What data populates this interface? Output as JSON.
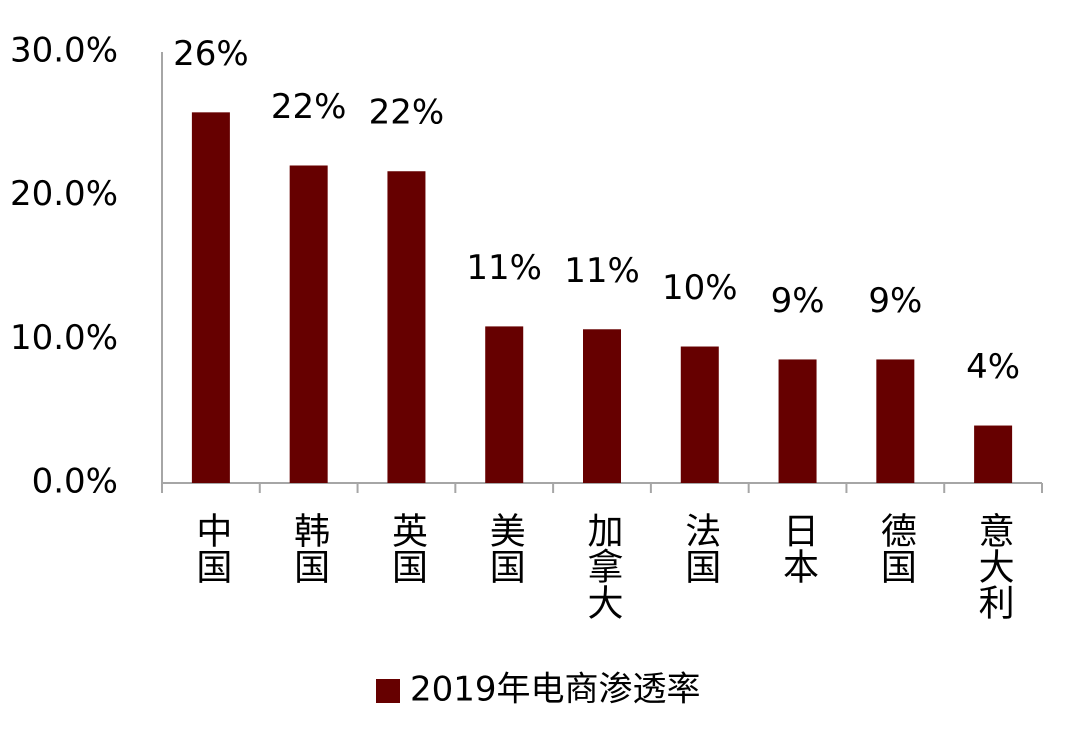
{
  "chart_data": {
    "type": "bar",
    "categories": [
      "中国",
      "韩国",
      "英国",
      "美国",
      "加拿大",
      "法国",
      "日本",
      "德国",
      "意大利"
    ],
    "series": [
      {
        "name": "2019年电商渗透率",
        "color": "#660000",
        "values": [
          25.8,
          22.1,
          21.7,
          10.9,
          10.7,
          9.5,
          8.6,
          8.6,
          4.0
        ],
        "value_labels": [
          "26%",
          "22%",
          "22%",
          "11%",
          "11%",
          "10%",
          "9%",
          "9%",
          "4%"
        ]
      }
    ],
    "ylim": [
      0,
      30
    ],
    "yticks": [
      {
        "value": 0,
        "label": "0.0%"
      },
      {
        "value": 10,
        "label": "10.0%"
      },
      {
        "value": 20,
        "label": "20.0%"
      },
      {
        "value": 30,
        "label": "30.0%"
      }
    ],
    "legend": "bottom"
  }
}
